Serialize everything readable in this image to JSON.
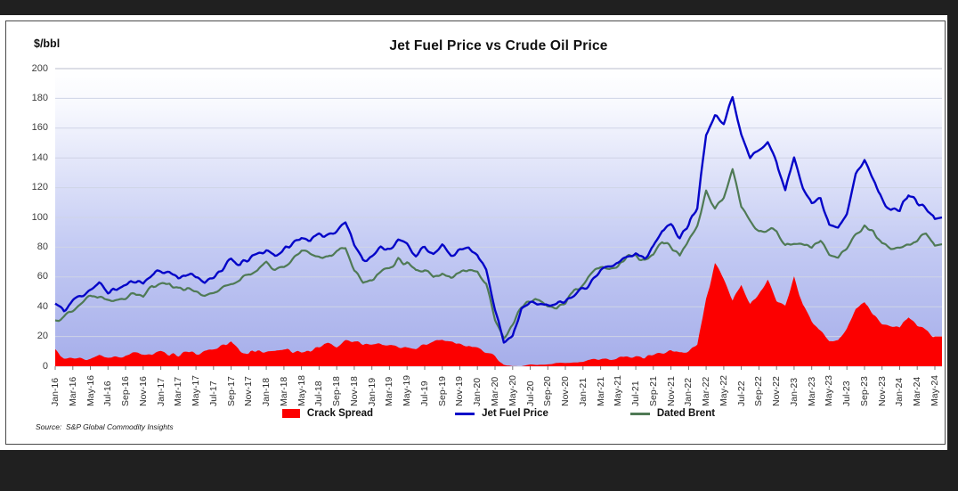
{
  "source": "Source:  S&P Global Commodity Insights",
  "chart_data": {
    "type": "area+line",
    "title": "Jet Fuel Price vs Crude Oil Price",
    "ylabel": "$/bbl",
    "xlabel": "",
    "ylim": [
      0,
      200
    ],
    "yticks": [
      0,
      20,
      40,
      60,
      80,
      100,
      120,
      140,
      160,
      180,
      200
    ],
    "grid": "horizontal",
    "legend_position": "bottom",
    "background_gradient": [
      "#ffffff",
      "#a6aeea"
    ],
    "xtick_every": 2,
    "categories": [
      "Jan-16",
      "Feb-16",
      "Mar-16",
      "Apr-16",
      "May-16",
      "Jun-16",
      "Jul-16",
      "Aug-16",
      "Sep-16",
      "Oct-16",
      "Nov-16",
      "Dec-16",
      "Jan-17",
      "Feb-17",
      "Mar-17",
      "Apr-17",
      "May-17",
      "Jun-17",
      "Jul-17",
      "Aug-17",
      "Sep-17",
      "Oct-17",
      "Nov-17",
      "Dec-17",
      "Jan-18",
      "Feb-18",
      "Mar-18",
      "Apr-18",
      "May-18",
      "Jun-18",
      "Jul-18",
      "Aug-18",
      "Sep-18",
      "Oct-18",
      "Nov-18",
      "Dec-18",
      "Jan-19",
      "Feb-19",
      "Mar-19",
      "Apr-19",
      "May-19",
      "Jun-19",
      "Jul-19",
      "Aug-19",
      "Sep-19",
      "Oct-19",
      "Nov-19",
      "Dec-19",
      "Jan-20",
      "Feb-20",
      "Mar-20",
      "Apr-20",
      "May-20",
      "Jun-20",
      "Jul-20",
      "Aug-20",
      "Sep-20",
      "Oct-20",
      "Nov-20",
      "Dec-20",
      "Jan-21",
      "Feb-21",
      "Mar-21",
      "Apr-21",
      "May-21",
      "Jun-21",
      "Jul-21",
      "Aug-21",
      "Sep-21",
      "Oct-21",
      "Nov-21",
      "Dec-21",
      "Jan-22",
      "Feb-22",
      "Mar-22",
      "Apr-22",
      "May-22",
      "Jun-22",
      "Jul-22",
      "Aug-22",
      "Sep-22",
      "Oct-22",
      "Nov-22",
      "Dec-22",
      "Jan-23",
      "Feb-23",
      "Mar-23",
      "Apr-23",
      "May-23",
      "Jun-23",
      "Jul-23",
      "Aug-23",
      "Sep-23",
      "Oct-23",
      "Nov-23",
      "Dec-23",
      "Jan-24",
      "Feb-24",
      "Mar-24",
      "Apr-24",
      "May-24"
    ],
    "series": [
      {
        "name": "Crack Spread",
        "type": "area",
        "color": "#fc0000",
        "values": [
          11,
          5,
          5,
          5,
          5,
          7,
          5,
          6,
          7,
          8,
          9,
          8,
          9,
          7,
          8,
          9,
          8,
          10,
          12,
          13,
          16,
          10,
          9,
          11,
          9,
          10,
          12,
          10,
          10,
          10,
          13,
          16,
          13,
          17,
          17,
          15,
          15,
          15,
          14,
          13,
          12,
          12,
          15,
          16,
          18,
          17,
          15,
          14,
          12,
          9,
          6,
          1,
          0,
          0,
          1,
          1,
          1,
          2,
          2,
          3,
          3,
          4,
          5,
          5,
          6,
          6,
          7,
          6,
          8,
          9,
          10,
          9,
          11,
          14,
          45,
          68,
          58,
          44,
          54,
          42,
          48,
          57,
          44,
          40,
          60,
          40,
          30,
          24,
          18,
          17,
          25,
          37,
          44,
          35,
          28,
          27,
          26,
          34,
          27,
          23,
          20
        ]
      },
      {
        "name": "Jet Fuel Price",
        "type": "line",
        "color": "#0505c8",
        "values": [
          42,
          37,
          44,
          48,
          52,
          55,
          50,
          52,
          54,
          58,
          56,
          62,
          64,
          63,
          60,
          62,
          59,
          57,
          61,
          65,
          71,
          68,
          72,
          75,
          78,
          75,
          78,
          82,
          87,
          85,
          87,
          89,
          92,
          97,
          82,
          72,
          74,
          79,
          80,
          84,
          82,
          75,
          79,
          75,
          80,
          76,
          78,
          80,
          76,
          64,
          38,
          17,
          22,
          38,
          42,
          43,
          40,
          41,
          44,
          48,
          52,
          58,
          64,
          66,
          70,
          74,
          76,
          74,
          80,
          92,
          94,
          88,
          96,
          108,
          158,
          168,
          165,
          180,
          155,
          140,
          146,
          150,
          138,
          118,
          140,
          122,
          110,
          112,
          96,
          94,
          105,
          128,
          138,
          126,
          112,
          106,
          104,
          116,
          110,
          106,
          99
        ]
      },
      {
        "name": "Dated Brent",
        "type": "line",
        "color": "#4f7a55",
        "values": [
          31,
          33,
          39,
          43,
          47,
          48,
          45,
          46,
          47,
          50,
          47,
          54,
          55,
          56,
          52,
          53,
          51,
          47,
          49,
          52,
          56,
          58,
          63,
          64,
          69,
          65,
          66,
          72,
          77,
          75,
          74,
          73,
          79,
          80,
          65,
          57,
          59,
          64,
          66,
          71,
          70,
          63,
          64,
          59,
          62,
          59,
          63,
          66,
          64,
          55,
          32,
          18,
          29,
          40,
          43,
          45,
          41,
          40,
          43,
          50,
          55,
          62,
          66,
          65,
          68,
          73,
          74,
          71,
          74,
          84,
          81,
          74,
          85,
          95,
          118,
          105,
          113,
          130,
          108,
          98,
          91,
          93,
          91,
          81,
          82,
          82,
          79,
          84,
          76,
          75,
          80,
          88,
          94,
          91,
          83,
          78,
          79,
          82,
          85,
          89,
          81
        ]
      }
    ]
  }
}
